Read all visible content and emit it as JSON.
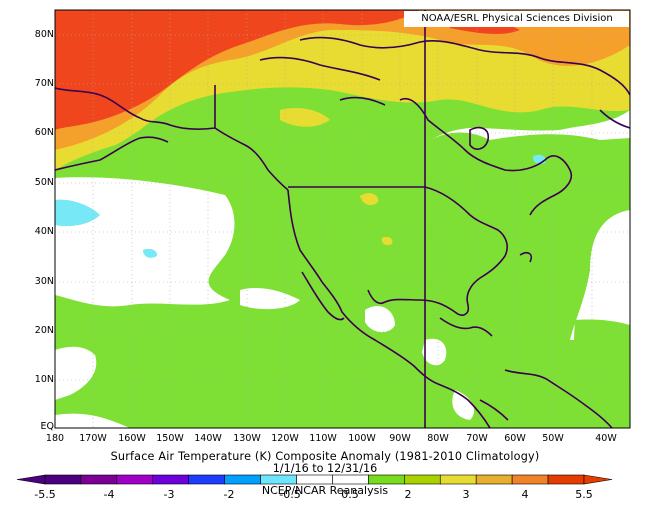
{
  "credit": "NOAA/ESRL Physical Sciences Division",
  "title": "Surface Air Temperature (K) Composite Anomaly (1981-2010 Climatology)",
  "date_range": "1/1/16 to 12/31/16",
  "source": "NCEP/NCAR Reanalysis",
  "lat_labels": [
    "80N",
    "70N",
    "60N",
    "50N",
    "40N",
    "30N",
    "20N",
    "10N",
    "EQ"
  ],
  "lon_labels": [
    "180",
    "170W",
    "160W",
    "150W",
    "140W",
    "130W",
    "120W",
    "110W",
    "100W",
    "90W",
    "80W",
    "70W",
    "60W",
    "50W",
    "40W"
  ],
  "colorbar_labels": [
    "-5.5",
    "-4",
    "-3",
    "-2",
    "-0.5",
    "0.5",
    "2",
    "3",
    "4",
    "5.5"
  ],
  "colors": {
    "bin_colors": [
      "#4b0082",
      "#7d0096",
      "#a000c8",
      "#6e00dc",
      "#1e3cff",
      "#00a0ff",
      "#6ee6ff",
      "#ffffff",
      "#ffffff",
      "#78dc1e",
      "#aad200",
      "#e6dc32",
      "#e6af2d",
      "#f08228",
      "#e63c00"
    ],
    "land_outline": "#3c0050",
    "green_anomaly": "#7ee034",
    "yellow_anomaly": "#e8dc32",
    "orange_anomaly": "#f5a02a",
    "red_anomaly": "#f0461e",
    "cyan_anomaly": "#76e8f6"
  }
}
